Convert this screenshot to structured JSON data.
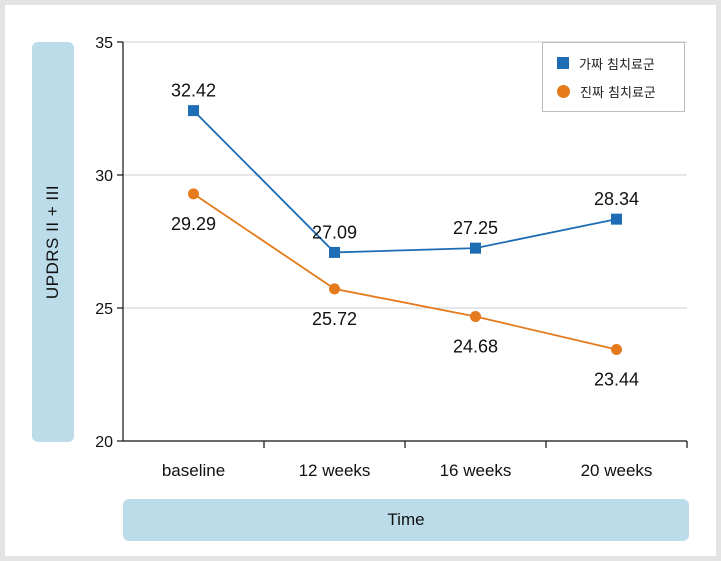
{
  "chart_data": {
    "type": "line",
    "xlabel": "Time",
    "ylabel": "UPDRS II + III",
    "ylim": [
      20,
      35
    ],
    "yticks": [
      20,
      25,
      30,
      35
    ],
    "categories": [
      "baseline",
      "12 weeks",
      "16 weeks",
      "20 weeks"
    ],
    "grid": "horizontal",
    "legend_position": "top-right",
    "series": [
      {
        "name": "가짜 침치료군",
        "marker": "square",
        "color": "#1d6db5",
        "values": [
          32.42,
          27.09,
          27.25,
          28.34
        ],
        "value_labels": [
          "32.42",
          "27.09",
          "27.25",
          "28.34"
        ]
      },
      {
        "name": "진짜 침치료군",
        "marker": "circle",
        "color": "#e47a1b",
        "values": [
          29.29,
          25.72,
          24.68,
          23.44
        ],
        "value_labels": [
          "29.29",
          "25.72",
          "24.68",
          "23.44"
        ]
      }
    ]
  }
}
